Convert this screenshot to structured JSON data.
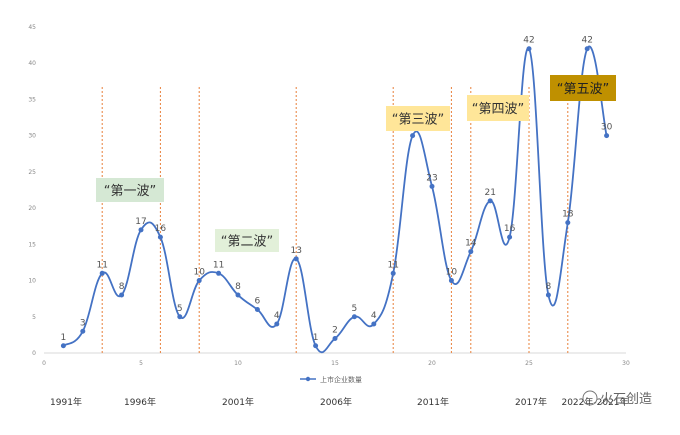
{
  "chart_data": {
    "type": "line",
    "series": [
      {
        "name": "上市企业数量",
        "color": "#4472C4",
        "points": [
          [
            1,
            1
          ],
          [
            2,
            3
          ],
          [
            3,
            11
          ],
          [
            4,
            8
          ],
          [
            5,
            17
          ],
          [
            6,
            16
          ],
          [
            7,
            5
          ],
          [
            8,
            10
          ],
          [
            9,
            11
          ],
          [
            10,
            8
          ],
          [
            11,
            6
          ],
          [
            12,
            4
          ],
          [
            13,
            13
          ],
          [
            14,
            1
          ],
          [
            15,
            2
          ],
          [
            16,
            5
          ],
          [
            17,
            4
          ],
          [
            18,
            11
          ],
          [
            19,
            30
          ],
          [
            20,
            23
          ],
          [
            21,
            10
          ],
          [
            22,
            14
          ],
          [
            23,
            21
          ],
          [
            24,
            16
          ],
          [
            25,
            42
          ],
          [
            26,
            8
          ],
          [
            27,
            18
          ],
          [
            28,
            42
          ],
          [
            29,
            30
          ]
        ]
      }
    ],
    "xlim": [
      0,
      30
    ],
    "ylim": [
      0,
      45
    ],
    "x_ticks": [
      0,
      5,
      10,
      15,
      20,
      25,
      30
    ],
    "y_ticks": [
      0,
      5,
      10,
      15,
      20,
      25,
      30,
      35,
      40,
      45
    ],
    "vlines_x": [
      3,
      6,
      8,
      13,
      18,
      21,
      22,
      25,
      27
    ],
    "year_labels": [
      "1991年",
      "1996年",
      "2001年",
      "2006年",
      "2011年",
      "2017年",
      "2022年-2021年"
    ],
    "legend": "上市企业数量",
    "legend_position": "bottom-center",
    "waves": [
      {
        "label": "“第一波”",
        "bg": "#D5E8D4",
        "color": "#333333"
      },
      {
        "label": "“第二波”",
        "bg": "#E2F0D9",
        "color": "#333333"
      },
      {
        "label": "“第三波”",
        "bg": "#FFE699",
        "color": "#333333"
      },
      {
        "label": "“第四波”",
        "bg": "#FFE699",
        "color": "#333333"
      },
      {
        "label": "“第五波”",
        "bg": "#BF9000",
        "color": "#222222"
      }
    ]
  },
  "watermark": "火石创造"
}
